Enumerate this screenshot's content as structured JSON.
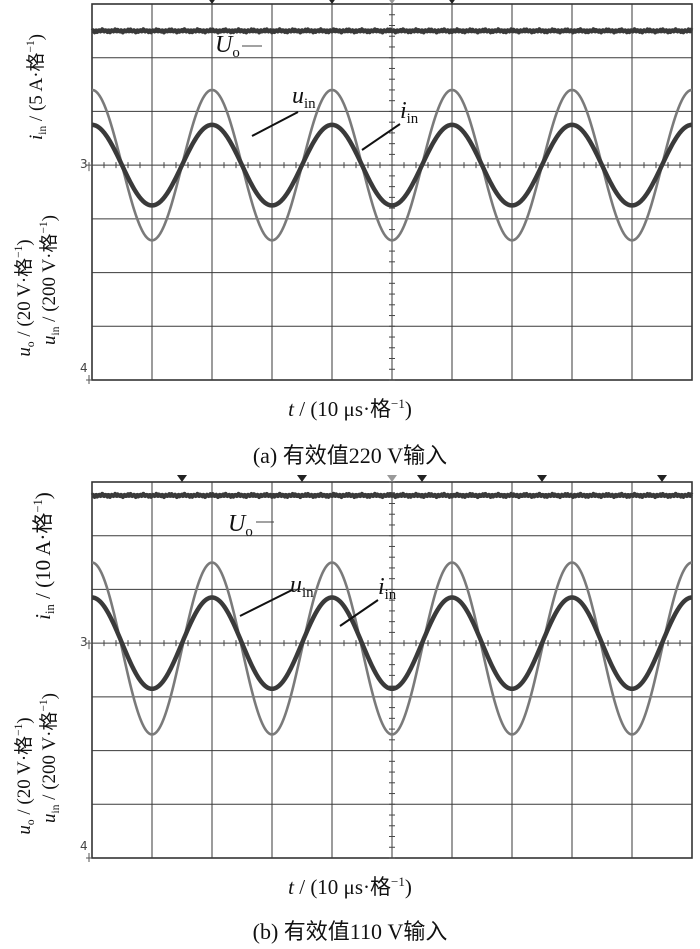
{
  "chart_data": [
    {
      "type": "line",
      "caption": "(a)  有效值220 V输入",
      "xlabel": {
        "var": "t",
        "unit": " / (10 μs·格",
        "exp": "−1",
        "close": ")"
      },
      "ylabel_top": {
        "var": "i",
        "sub": "in",
        "unit": " / (5 A·格",
        "exp": "−1",
        "close": ")"
      },
      "ylabel_bottom_1": {
        "var": "u",
        "sub": "o",
        "unit": " / (20 V·格",
        "exp": "−1",
        "close": ")"
      },
      "ylabel_bottom_2": {
        "var": "u",
        "sub": "in",
        "unit": " / (200 V·格",
        "exp": "−1",
        "close": ")"
      },
      "grid": {
        "x_divisions": 10,
        "y_divisions": 7
      },
      "x_range_div": [
        0,
        10
      ],
      "y_range_div": [
        -4,
        3
      ],
      "ground_marker": "3",
      "bottom_marker": "4",
      "trigger_marks": [
        2,
        4,
        6
      ],
      "series": [
        {
          "name": "U",
          "sub": "o",
          "kind": "dc",
          "level_div": 2.5,
          "color": "#3a3a3a"
        },
        {
          "name": "u",
          "sub": "in",
          "kind": "sine",
          "amplitude_div": 1.4,
          "period_div": 2.0,
          "peak_at_div": 0.0,
          "offset_div": 0,
          "color": "#7a7a7a"
        },
        {
          "name": "i",
          "sub": "in",
          "kind": "sine",
          "amplitude_div": 0.75,
          "period_div": 2.0,
          "peak_at_div": 0.0,
          "offset_div": 0,
          "color": "#3a3a3a"
        }
      ],
      "annotations": [
        {
          "series": "u",
          "sub": "in"
        },
        {
          "series": "i",
          "sub": "in"
        }
      ]
    },
    {
      "type": "line",
      "caption": "(b)  有效值110 V输入",
      "xlabel": {
        "var": "t",
        "unit": " / (10 μs·格",
        "exp": "−1",
        "close": ")"
      },
      "ylabel_top": {
        "var": "i",
        "sub": "in",
        "unit": " / (10 A·格",
        "exp": "−1",
        "close": ")"
      },
      "ylabel_bottom_1": {
        "var": "u",
        "sub": "o",
        "unit": " / (20 V·格",
        "exp": "−1",
        "close": ")"
      },
      "ylabel_bottom_2": {
        "var": "u",
        "sub": "in",
        "unit": " / (200 V·格",
        "exp": "−1",
        "close": ")"
      },
      "grid": {
        "x_divisions": 10,
        "y_divisions": 7
      },
      "x_range_div": [
        0,
        10
      ],
      "y_range_div": [
        -4,
        3
      ],
      "ground_marker": "3",
      "bottom_marker": "4",
      "trigger_marks": [
        1.5,
        3.5,
        5.5,
        7.5,
        9.5
      ],
      "series": [
        {
          "name": "U",
          "sub": "o",
          "kind": "dc",
          "level_div": 2.75,
          "color": "#3a3a3a"
        },
        {
          "name": "u",
          "sub": "in",
          "kind": "sine",
          "amplitude_div": 1.6,
          "period_div": 2.0,
          "peak_at_div": 0.0,
          "offset_div": -0.1,
          "color": "#7a7a7a"
        },
        {
          "name": "i",
          "sub": "in",
          "kind": "sine",
          "amplitude_div": 0.85,
          "period_div": 2.0,
          "peak_at_div": 0.0,
          "offset_div": 0.0,
          "color": "#3a3a3a"
        }
      ],
      "annotations": [
        {
          "series": "u",
          "sub": "in"
        },
        {
          "series": "i",
          "sub": "in"
        }
      ]
    }
  ]
}
